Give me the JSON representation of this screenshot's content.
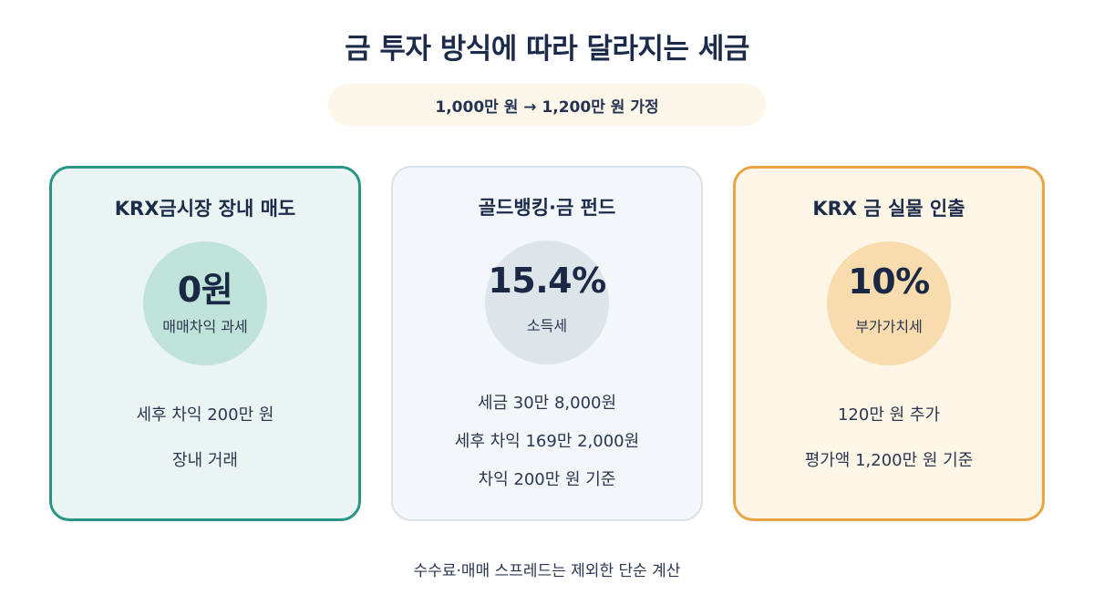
{
  "title": "금 투자 방식에 따라 달라지는 세금",
  "subtitle": "1,000만 원 → 1,200만 원 가정",
  "cards": [
    {
      "title": "KRX금시장 장내 매도",
      "rate": "0원",
      "tax_label": "매매차익 과세",
      "details": [
        "세후 차익 200만 원",
        "장내 거래"
      ]
    },
    {
      "title": "골드뱅킹·금 펀드",
      "rate": "15.4%",
      "tax_label": "소득세",
      "details": [
        "세금 30만 8,000원",
        "세후 차익 169만 2,000원",
        "차익 200만 원 기준"
      ]
    },
    {
      "title": "KRX 금 실물 인출",
      "rate": "10%",
      "tax_label": "부가가치세",
      "details": [
        "120만 원 추가",
        "평가액 1,200만 원 기준"
      ]
    }
  ],
  "footnote": "수수료·매매 스프레드는 제외한 단순 계산",
  "colors": {
    "card1_border": "#2a9585",
    "card2_border": "#d8e2e8",
    "card3_border": "#e9a444",
    "title_text": "#1c2b4a"
  }
}
